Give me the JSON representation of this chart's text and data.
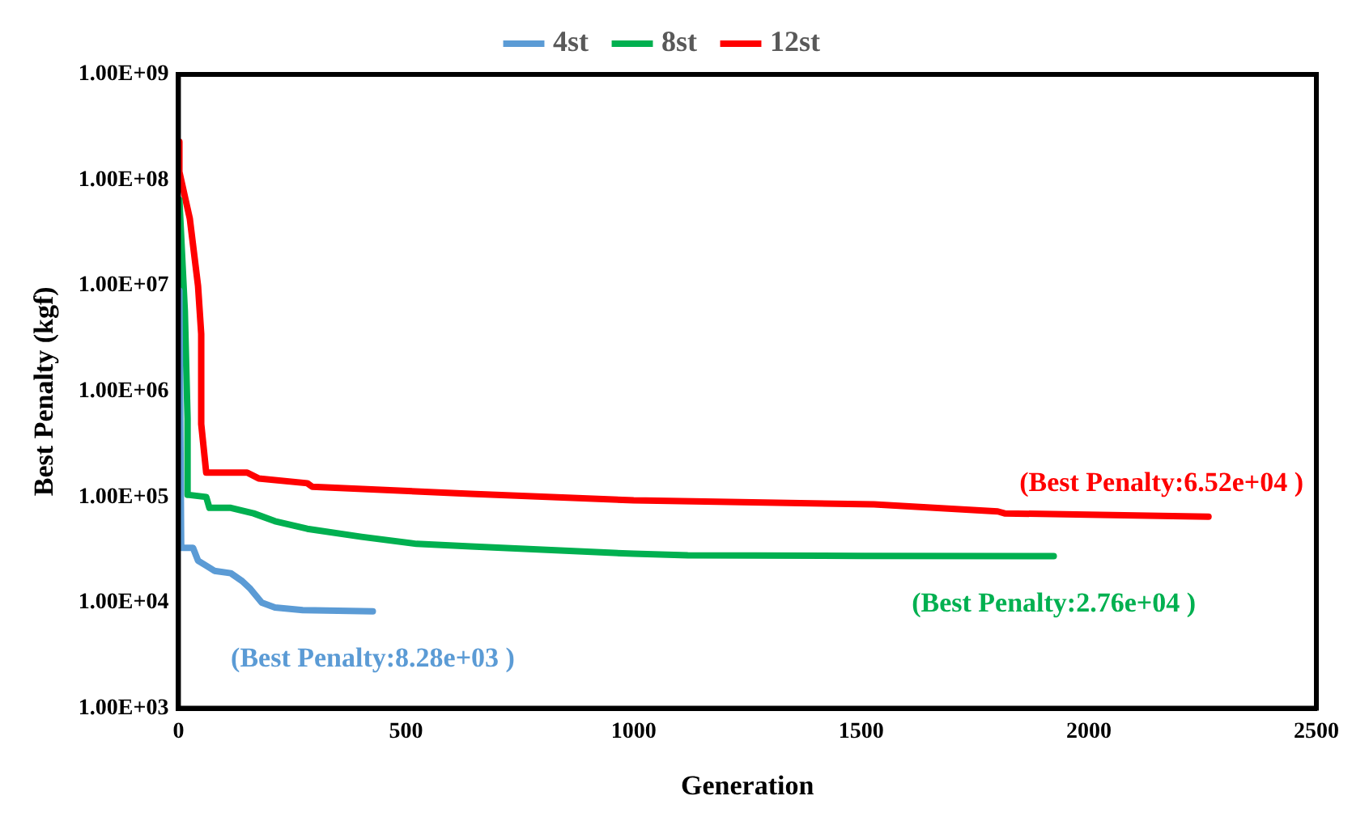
{
  "chart_data": {
    "type": "line",
    "xlabel": "Generation",
    "ylabel": "Best Penalty (kgf)",
    "log": "y",
    "grid": false,
    "legend": "top",
    "marker": "none",
    "line_style": "solid",
    "xlim": [
      0,
      2500
    ],
    "xticks": [
      0,
      500,
      1000,
      1500,
      2000,
      2500
    ],
    "ylim": [
      1000,
      1000000000
    ],
    "yticks": [
      {
        "value": 1000,
        "label": "1.00E+03"
      },
      {
        "value": 10000,
        "label": "1.00E+04"
      },
      {
        "value": 100000,
        "label": "1.00E+05"
      },
      {
        "value": 1000000,
        "label": "1.00E+06"
      },
      {
        "value": 10000000,
        "label": "1.00E+07"
      },
      {
        "value": 100000000,
        "label": "1.00E+08"
      },
      {
        "value": 1000000000,
        "label": "1.00E+09"
      }
    ],
    "series": [
      {
        "name": "4st",
        "color": "#5b9bd5",
        "x": [
          2,
          6,
          32,
          43,
          79,
          115,
          140,
          158,
          183,
          212,
          273,
          427
        ],
        "values": [
          9000000,
          33000,
          33000,
          25000,
          20000,
          19000,
          16000,
          13500,
          10000,
          9000,
          8500,
          8280
        ]
      },
      {
        "name": "8st",
        "color": "#00b050",
        "x": [
          2,
          14,
          20,
          20,
          61,
          68,
          115,
          165,
          212,
          283,
          402,
          523,
          642,
          1000,
          1119,
          1500,
          1923
        ],
        "values": [
          65000000,
          5800000,
          550000,
          105000,
          100000,
          79000,
          79000,
          70000,
          59000,
          50000,
          42000,
          36000,
          34000,
          29000,
          28000,
          27700,
          27600
        ]
      },
      {
        "name": "12st",
        "color": "#ff0000",
        "x": [
          2,
          2,
          25,
          43,
          50,
          50,
          61,
          151,
          176,
          283,
          294,
          642,
          1000,
          1528,
          1800,
          1815,
          2263
        ],
        "values": [
          230000000,
          120000000,
          43000000,
          10000000,
          3500000,
          490000,
          170000,
          170000,
          150000,
          135000,
          125000,
          107000,
          93000,
          85000,
          73000,
          70000,
          65200
        ]
      }
    ],
    "annotations": [
      {
        "text": "(Best Penalty:8.28e+03 )",
        "x": 427,
        "y": 8280
      },
      {
        "text": "(Best Penalty:2.76e+04 )",
        "x": 1923,
        "y": 27600
      },
      {
        "text": "(Best Penalty:6.52e+04 )",
        "x": 2263,
        "y": 65200
      }
    ]
  }
}
